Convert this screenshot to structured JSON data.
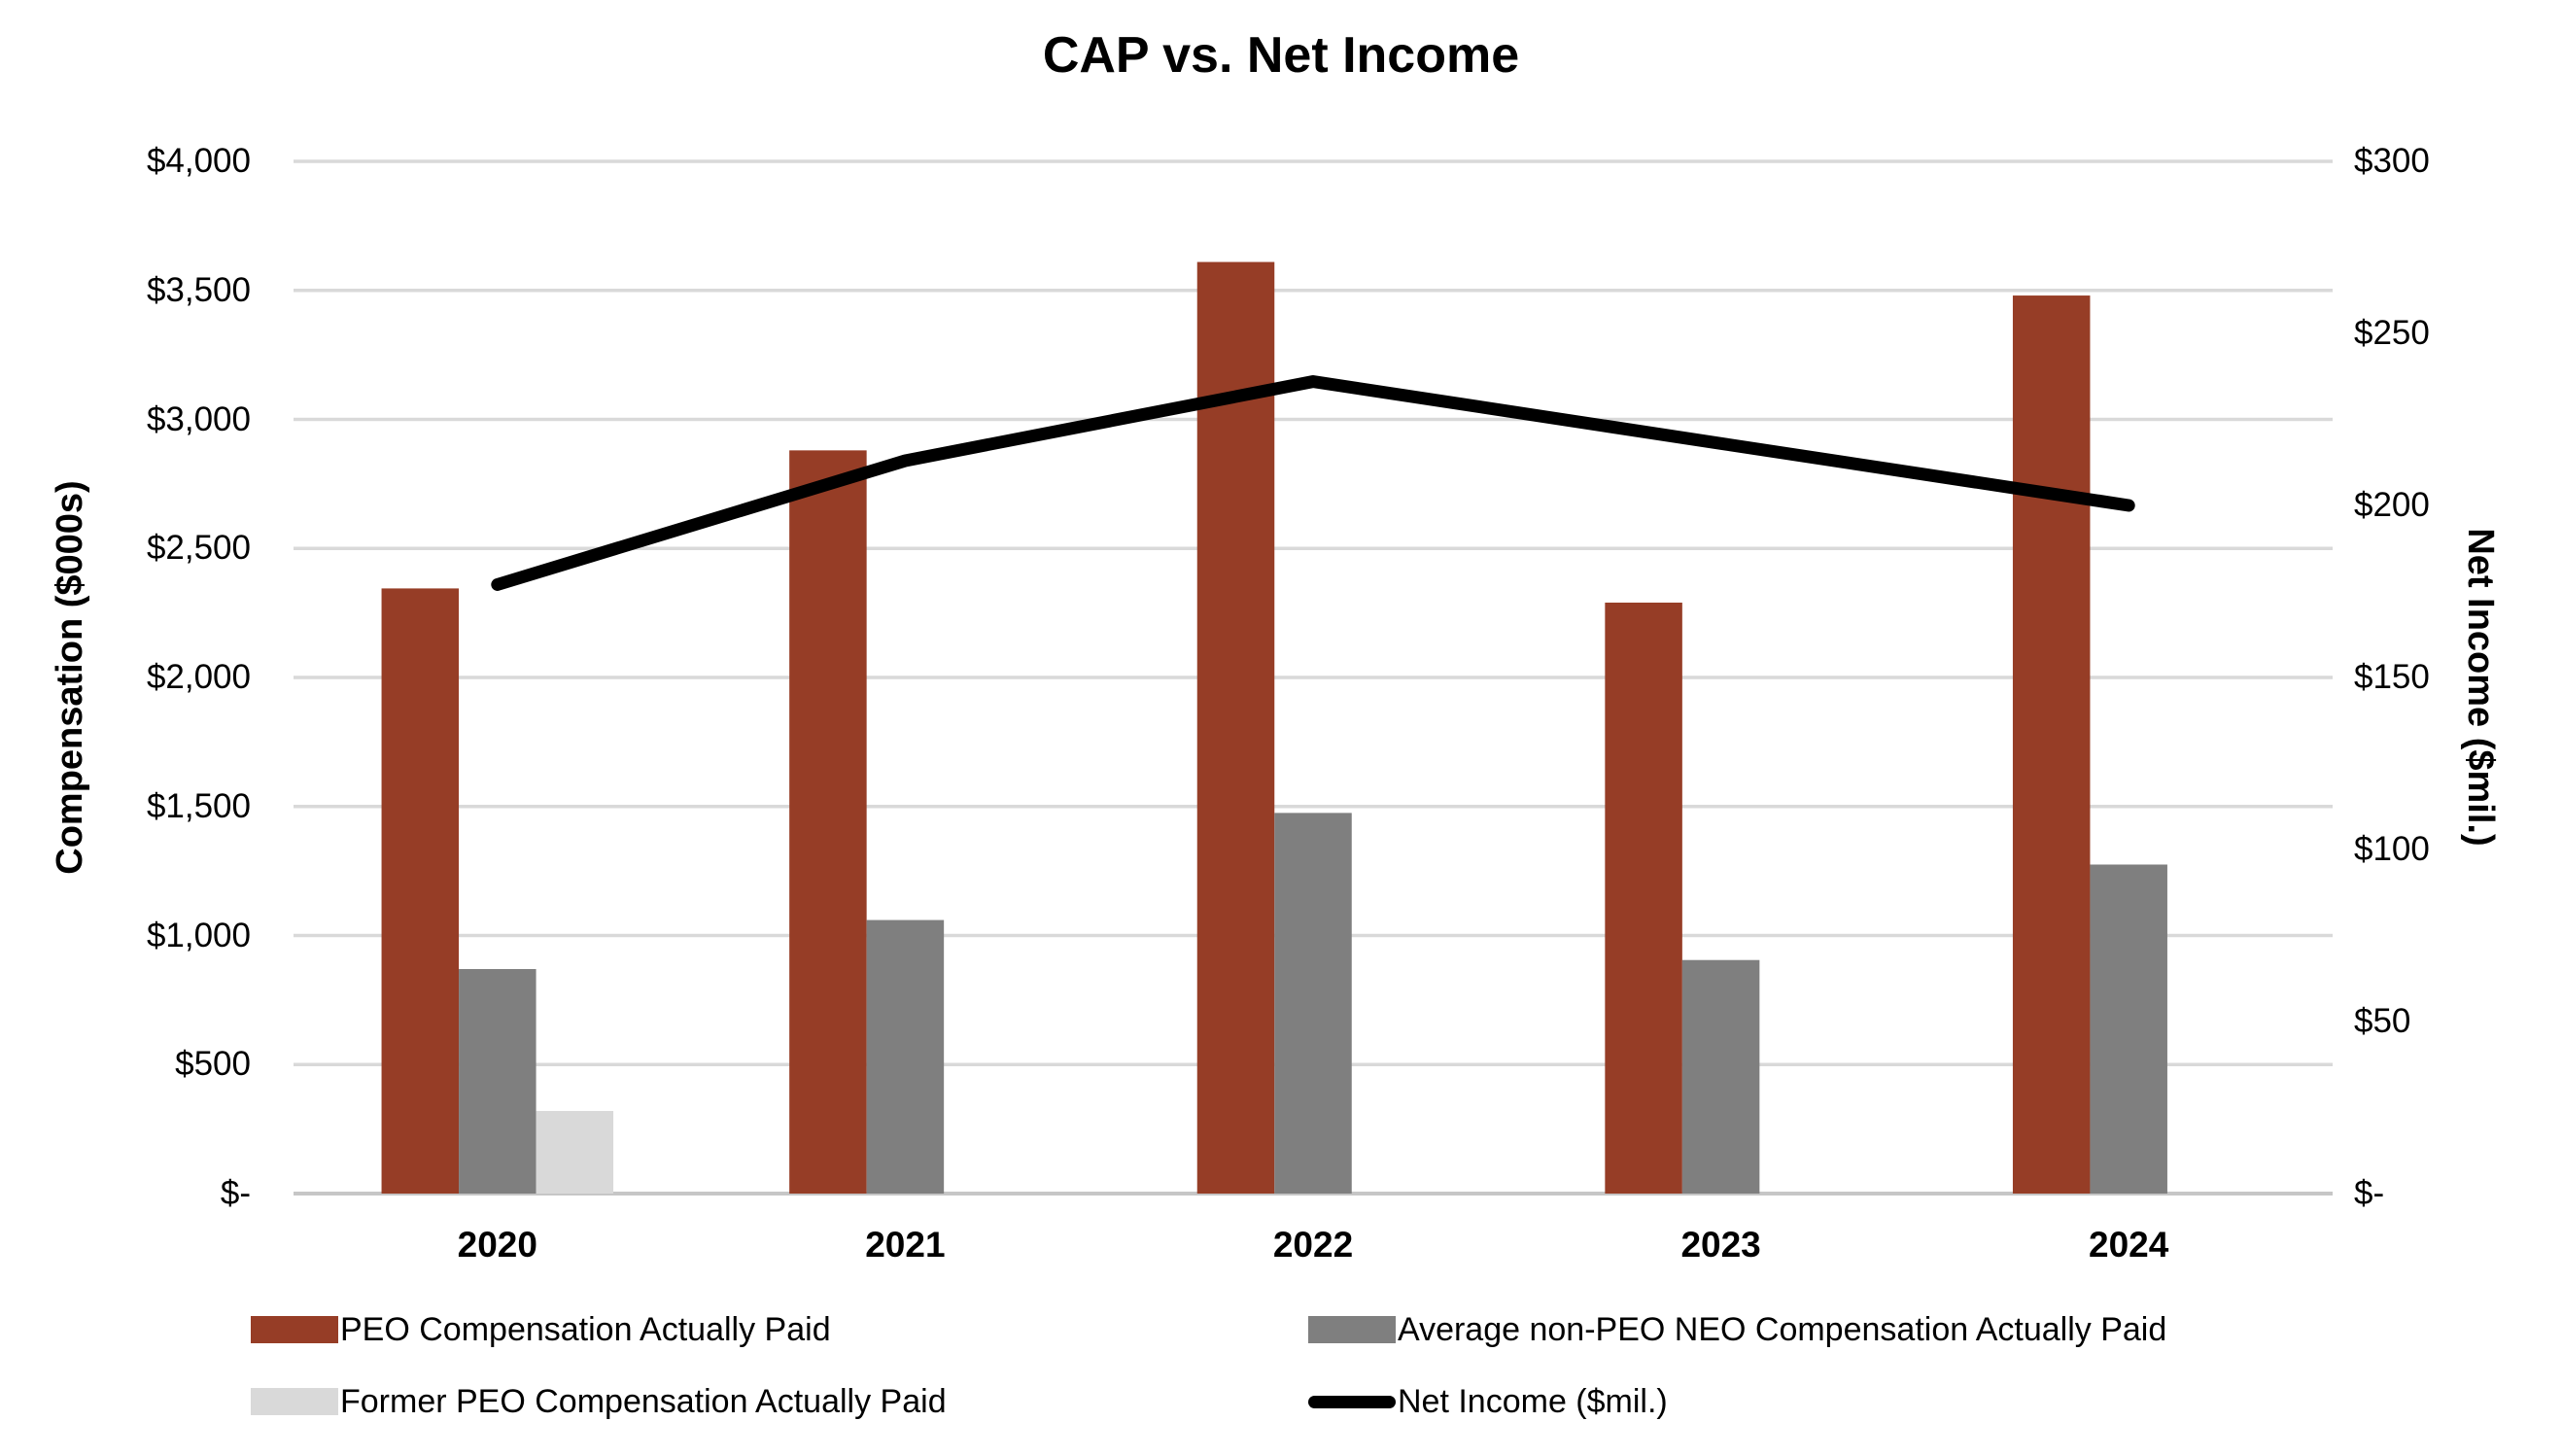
{
  "title": "CAP vs. Net Income",
  "chart_data": {
    "type": "bar+line combo",
    "title": "CAP vs. Net Income",
    "categories": [
      "2020",
      "2021",
      "2022",
      "2023",
      "2024"
    ],
    "series": [
      {
        "name": "PEO Compensation Actually Paid",
        "type": "bar",
        "axis": "left",
        "color": "#963D26",
        "values": [
          2345,
          2880,
          3610,
          2290,
          3480
        ]
      },
      {
        "name": "Average non-PEO NEO Compensation Actually Paid",
        "type": "bar",
        "axis": "left",
        "color": "#7F7F7F",
        "values": [
          870,
          1060,
          1475,
          905,
          1275
        ]
      },
      {
        "name": "Former PEO Compensation Actually Paid",
        "type": "bar",
        "axis": "left",
        "color": "#D9D9D9",
        "values": [
          320,
          null,
          null,
          null,
          null
        ]
      },
      {
        "name": "Net Income ($mil.)",
        "type": "line",
        "axis": "right",
        "color": "#000000",
        "values": [
          177,
          213,
          236,
          218,
          200
        ]
      }
    ],
    "left_axis": {
      "label": "Compensation ($000s)",
      "ticks": [
        "$4,000",
        "$3,500",
        "$3,000",
        "$2,500",
        "$2,000",
        "$1,500",
        "$1,000",
        "$500",
        "$-"
      ],
      "min": 0,
      "max": 4000,
      "step": 500
    },
    "right_axis": {
      "label": "Net Income ($mil.)",
      "ticks": [
        "$300",
        "$250",
        "$200",
        "$150",
        "$100",
        "$50",
        "$-"
      ],
      "min": 0,
      "max": 300,
      "step": 50
    },
    "grid": true,
    "gridline_color": "#D9D9D9",
    "baseline_color": "#C6C6C6",
    "legend_position": "bottom, two columns"
  }
}
